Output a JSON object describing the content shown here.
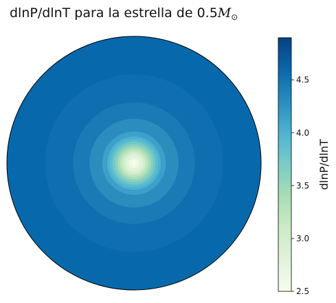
{
  "title": {
    "prefix": "dlnP/dlnT para la estrella de 0.5",
    "msun_symbol": "M",
    "msun_sub": "⊙"
  },
  "chart_data": {
    "type": "heatmap",
    "description_kind": "polar radial contour",
    "title": "dlnP/dlnT para la estrella de 0.5M⊙",
    "colormap": "GnBu",
    "colorbar": {
      "label": "dlnP/dlnT",
      "range": [
        2.5,
        4.9
      ],
      "ticks": [
        2.5,
        3.0,
        3.5,
        4.0,
        4.5
      ],
      "tick_labels": [
        "2.5",
        "3.0",
        "3.5",
        "4.0",
        "4.5"
      ]
    },
    "radial_profile": {
      "r": [
        0.0,
        0.04,
        0.07,
        0.09,
        0.11,
        0.13,
        0.15,
        0.17,
        0.19,
        0.21,
        0.25,
        0.35,
        0.48,
        0.7,
        1.0
      ],
      "value": [
        2.5,
        2.6,
        2.8,
        3.0,
        3.2,
        3.4,
        3.6,
        3.75,
        3.9,
        4.0,
        4.15,
        4.3,
        4.45,
        4.55,
        4.6
      ]
    },
    "grid": false
  }
}
